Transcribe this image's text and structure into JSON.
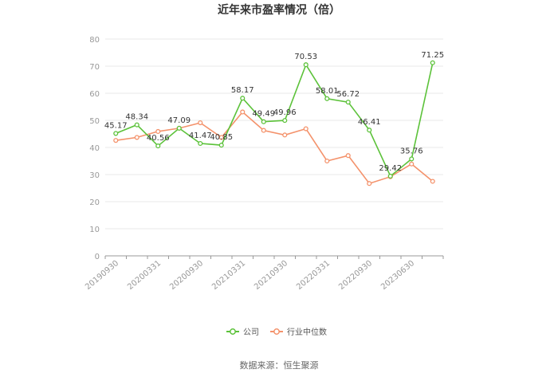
{
  "chart_data": {
    "type": "line",
    "title": "近年来市盈率情况（倍）",
    "source": "数据来源：恒生聚源",
    "x_tick_labels": [
      "20190930",
      "20200331",
      "20200930",
      "20210331",
      "20210930",
      "20220331",
      "20220930",
      "20230630"
    ],
    "ylim": [
      0,
      80
    ],
    "yticks": [
      0,
      10,
      20,
      30,
      40,
      50,
      60,
      70,
      80
    ],
    "grid": true,
    "legend_position": "bottom",
    "series": [
      {
        "name": "公司",
        "color": "#5cc23a",
        "values": [
          45.17,
          48.34,
          40.56,
          47.09,
          41.47,
          40.85,
          58.17,
          49.49,
          49.96,
          70.53,
          58.01,
          56.72,
          46.41,
          29.42,
          35.76,
          71.25
        ],
        "labels": [
          "45.17",
          "48.34",
          "40.56",
          "47.09",
          "41.47",
          "40.85",
          "58.17",
          "49.49",
          "49.96",
          "70.53",
          "58.01",
          "56.72",
          "46.41",
          "29.42",
          "35.76",
          "71.25"
        ]
      },
      {
        "name": "行业中位数",
        "color": "#f4926b",
        "values": [
          42.6,
          43.7,
          45.9,
          47.1,
          49.1,
          43.7,
          53.1,
          46.3,
          44.6,
          46.9,
          35.0,
          37.0,
          26.7,
          29.2,
          33.9,
          27.5
        ]
      }
    ]
  }
}
